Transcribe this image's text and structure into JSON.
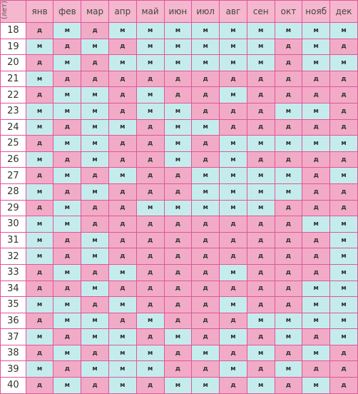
{
  "header": {
    "corner_label": "Возраст (лет)",
    "months": [
      "янв",
      "фев",
      "мар",
      "апр",
      "май",
      "июн",
      "июл",
      "авг",
      "сен",
      "окт",
      "нояб",
      "дек"
    ]
  },
  "colors": {
    "m": "#c5ecec",
    "d": "#f2abc6",
    "border": "#e0559a",
    "header": "#f4b7cd"
  },
  "rows": [
    {
      "age": "18",
      "cells": [
        "д",
        "м",
        "д",
        "м",
        "м",
        "м",
        "м",
        "м",
        "м",
        "м",
        "м",
        "м"
      ]
    },
    {
      "age": "19",
      "cells": [
        "м",
        "д",
        "м",
        "д",
        "м",
        "м",
        "м",
        "м",
        "м",
        "д",
        "м",
        "д"
      ]
    },
    {
      "age": "20",
      "cells": [
        "д",
        "м",
        "д",
        "м",
        "м",
        "м",
        "м",
        "м",
        "м",
        "д",
        "м",
        "м"
      ]
    },
    {
      "age": "21",
      "cells": [
        "м",
        "д",
        "д",
        "д",
        "д",
        "д",
        "д",
        "д",
        "д",
        "д",
        "д",
        "д"
      ]
    },
    {
      "age": "22",
      "cells": [
        "д",
        "м",
        "м",
        "д",
        "м",
        "д",
        "д",
        "м",
        "д",
        "д",
        "д",
        "д"
      ]
    },
    {
      "age": "23",
      "cells": [
        "м",
        "м",
        "м",
        "д",
        "м",
        "м",
        "д",
        "д",
        "д",
        "м",
        "м",
        "д"
      ]
    },
    {
      "age": "24",
      "cells": [
        "м",
        "д",
        "м",
        "м",
        "д",
        "м",
        "м",
        "д",
        "д",
        "д",
        "д",
        "д"
      ]
    },
    {
      "age": "25",
      "cells": [
        "д",
        "м",
        "м",
        "д",
        "д",
        "м",
        "д",
        "м",
        "м",
        "м",
        "м",
        "м"
      ]
    },
    {
      "age": "26",
      "cells": [
        "м",
        "д",
        "м",
        "д",
        "д",
        "м",
        "д",
        "м",
        "д",
        "д",
        "д",
        "д"
      ]
    },
    {
      "age": "27",
      "cells": [
        "д",
        "м",
        "д",
        "м",
        "д",
        "д",
        "м",
        "м",
        "м",
        "м",
        "д",
        "м"
      ]
    },
    {
      "age": "28",
      "cells": [
        "м",
        "д",
        "м",
        "д",
        "д",
        "д",
        "м",
        "м",
        "м",
        "м",
        "д",
        "д"
      ]
    },
    {
      "age": "29",
      "cells": [
        "д",
        "м",
        "д",
        "д",
        "м",
        "м",
        "м",
        "м",
        "м",
        "д",
        "д",
        "д"
      ]
    },
    {
      "age": "30",
      "cells": [
        "м",
        "м",
        "д",
        "д",
        "д",
        "д",
        "д",
        "д",
        "д",
        "д",
        "м",
        "м"
      ]
    },
    {
      "age": "31",
      "cells": [
        "м",
        "д",
        "м",
        "д",
        "д",
        "д",
        "д",
        "д",
        "д",
        "д",
        "д",
        "м"
      ]
    },
    {
      "age": "32",
      "cells": [
        "м",
        "д",
        "м",
        "д",
        "д",
        "д",
        "д",
        "д",
        "д",
        "д",
        "д",
        "м"
      ]
    },
    {
      "age": "33",
      "cells": [
        "д",
        "м",
        "д",
        "м",
        "д",
        "д",
        "д",
        "м",
        "д",
        "д",
        "д",
        "м"
      ]
    },
    {
      "age": "34",
      "cells": [
        "д",
        "д",
        "м",
        "д",
        "д",
        "д",
        "д",
        "д",
        "д",
        "д",
        "м",
        "м"
      ]
    },
    {
      "age": "35",
      "cells": [
        "м",
        "м",
        "д",
        "м",
        "д",
        "д",
        "д",
        "м",
        "д",
        "д",
        "м",
        "м"
      ]
    },
    {
      "age": "36",
      "cells": [
        "д",
        "м",
        "м",
        "д",
        "м",
        "д",
        "д",
        "д",
        "м",
        "м",
        "м",
        "м"
      ]
    },
    {
      "age": "37",
      "cells": [
        "м",
        "д",
        "м",
        "м",
        "д",
        "м",
        "д",
        "м",
        "д",
        "м",
        "д",
        "м"
      ]
    },
    {
      "age": "38",
      "cells": [
        "д",
        "м",
        "д",
        "м",
        "м",
        "д",
        "м",
        "д",
        "м",
        "д",
        "м",
        "д"
      ]
    },
    {
      "age": "39",
      "cells": [
        "м",
        "д",
        "м",
        "м",
        "м",
        "д",
        "д",
        "м",
        "д",
        "м",
        "д",
        "д"
      ]
    },
    {
      "age": "40",
      "cells": [
        "д",
        "м",
        "д",
        "м",
        "д",
        "м",
        "м",
        "д",
        "м",
        "д",
        "м",
        "д"
      ]
    }
  ]
}
